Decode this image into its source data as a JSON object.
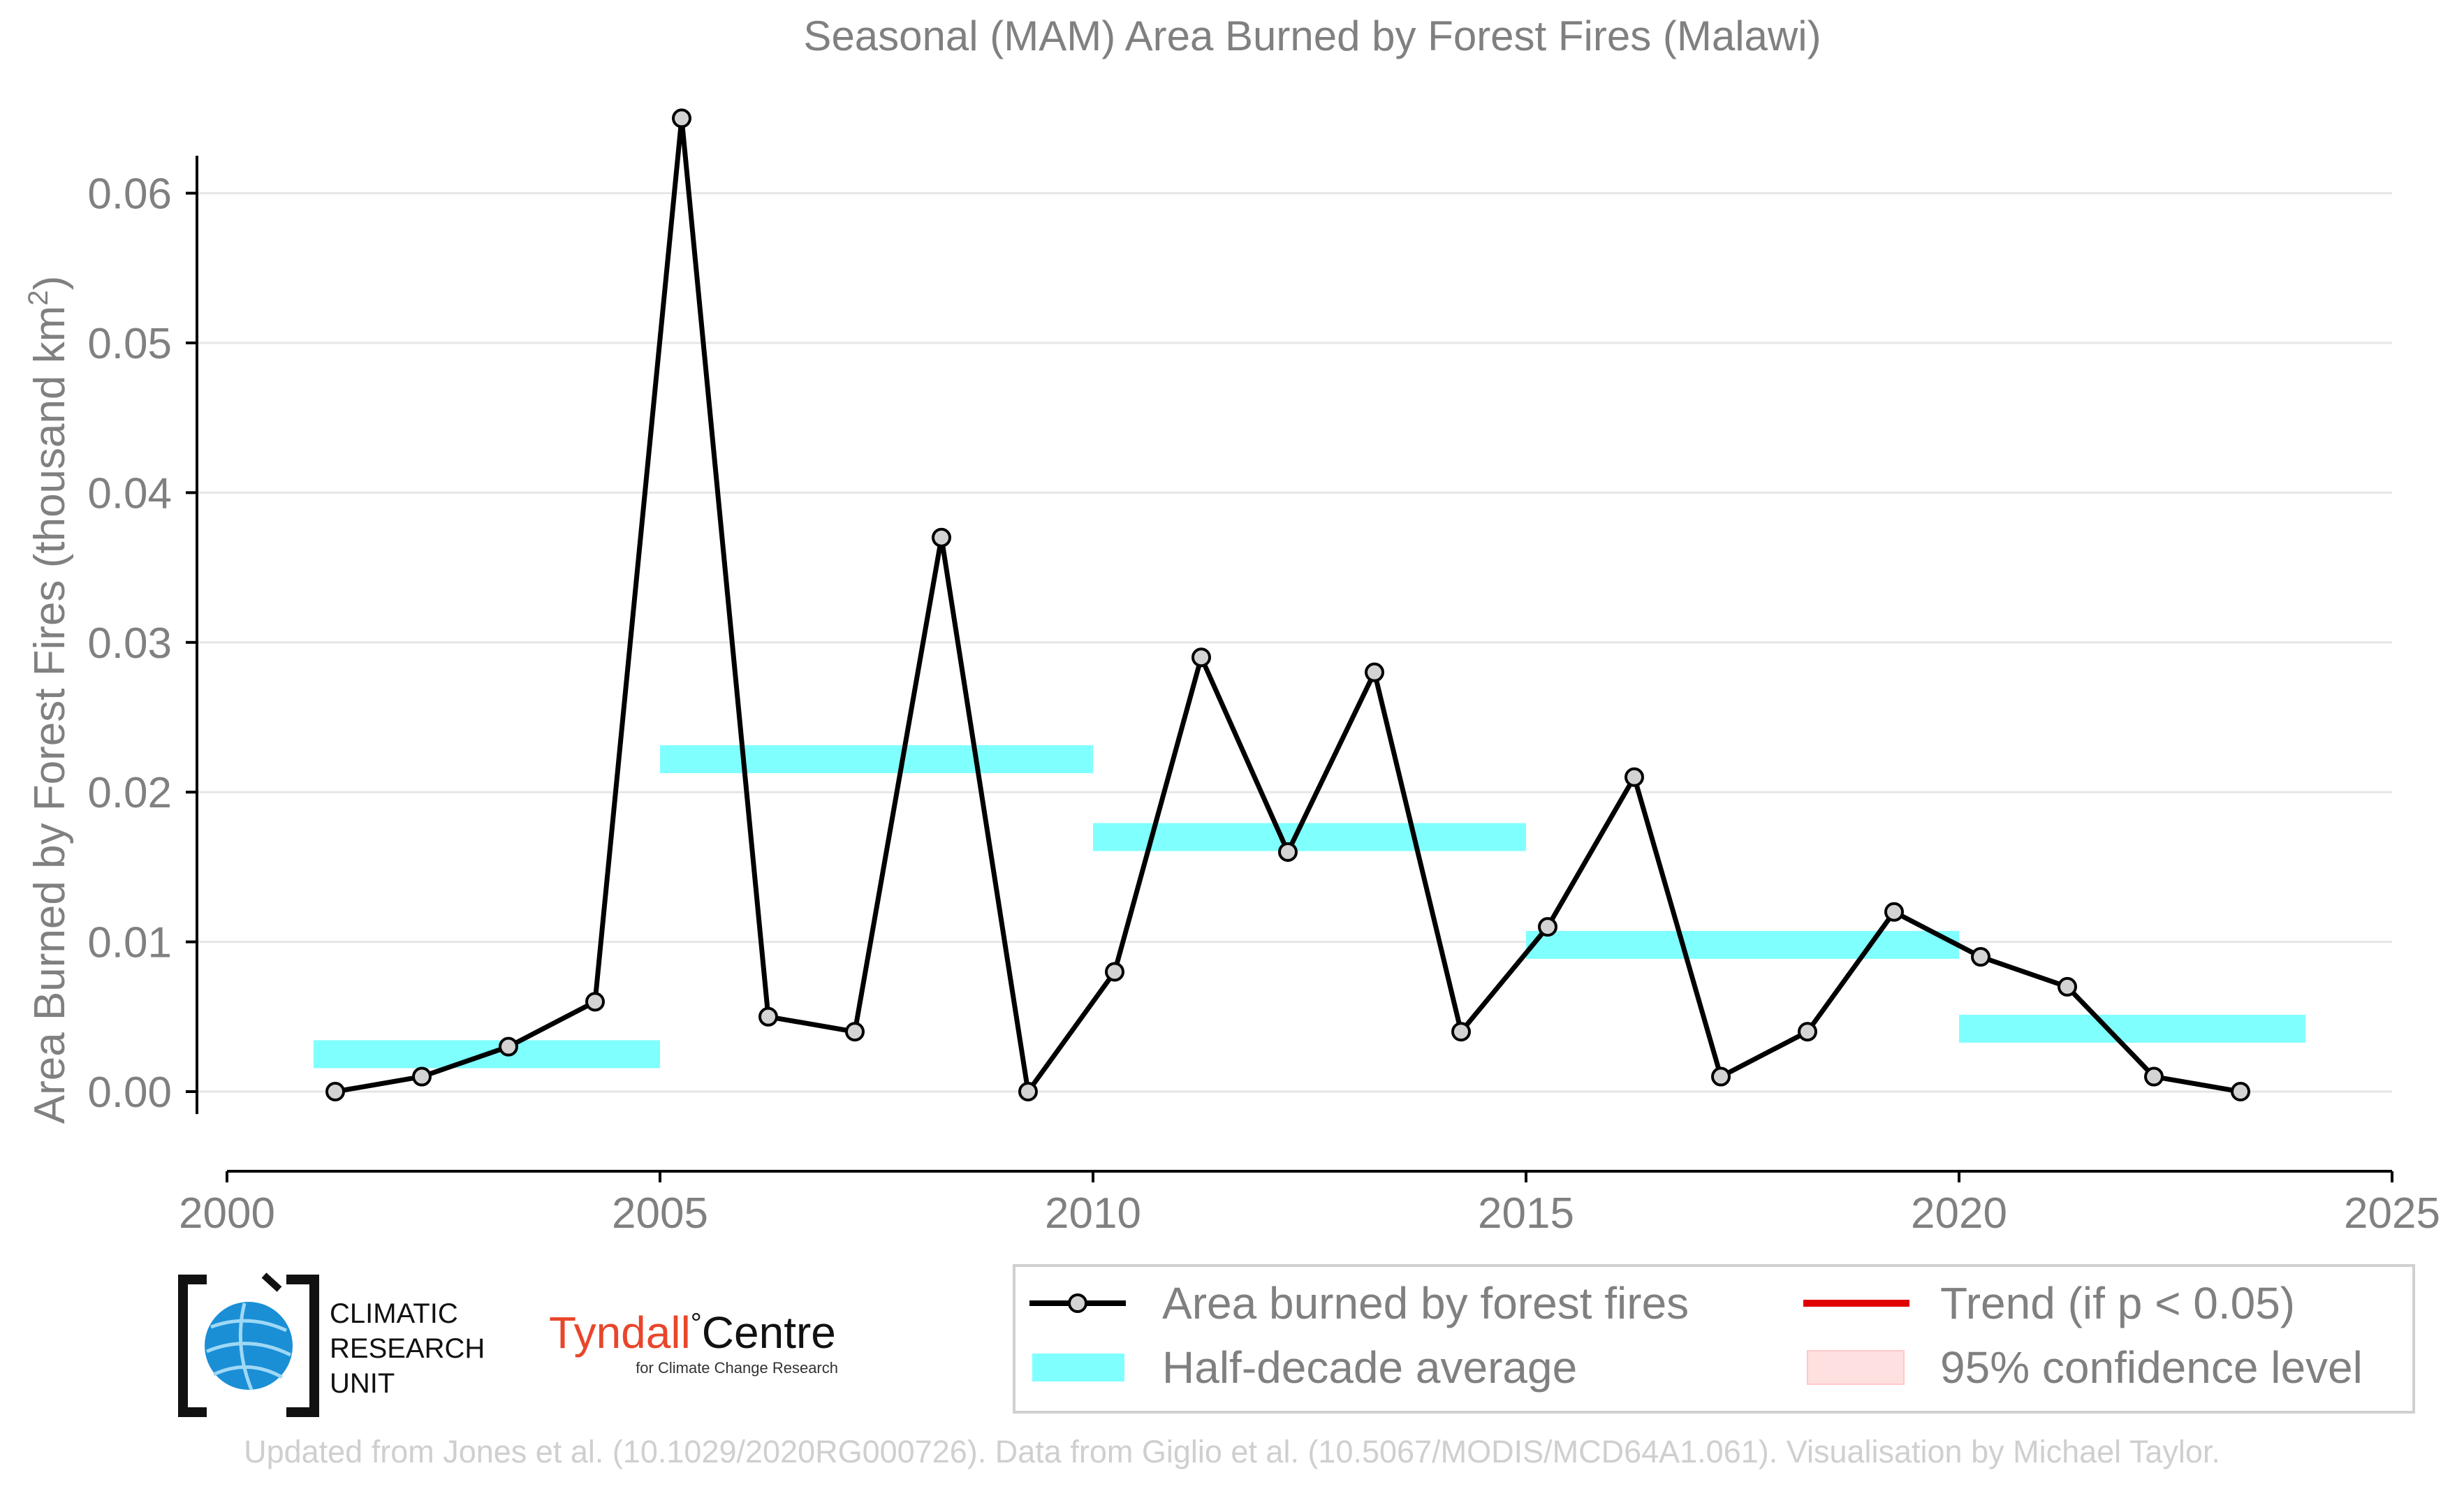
{
  "chart_data": {
    "type": "line",
    "title": "Seasonal (MAM) Area Burned by Forest Fires (Malawi)",
    "xlabel": "",
    "ylabel": "Area Burned by Forest Fires (thousand km",
    "ylabel_superscript": "2",
    "ylabel_close": ")",
    "xlim": [
      2000,
      2025
    ],
    "ylim": [
      -0.005,
      0.067
    ],
    "xticks": [
      2000,
      2005,
      2010,
      2015,
      2020,
      2025
    ],
    "xtick_labels": [
      "2000",
      "2005",
      "2010",
      "2015",
      "2020",
      "2025"
    ],
    "yticks": [
      0.0,
      0.01,
      0.02,
      0.03,
      0.04,
      0.05,
      0.06
    ],
    "ytick_labels": [
      "0.00",
      "0.01",
      "0.02",
      "0.03",
      "0.04",
      "0.05",
      "0.06"
    ],
    "grid": "horizontal",
    "series": [
      {
        "name": "Area burned by forest fires",
        "color": "#000000",
        "marker_fill": "#d3d3d3",
        "x": [
          2001.25,
          2002.25,
          2003.25,
          2004.25,
          2005.25,
          2006.25,
          2007.25,
          2008.25,
          2009.25,
          2010.25,
          2011.25,
          2012.25,
          2013.25,
          2014.25,
          2015.25,
          2016.25,
          2017.25,
          2018.25,
          2019.25,
          2020.25,
          2021.25,
          2022.25,
          2023.25
        ],
        "values": [
          0.0,
          0.001,
          0.003,
          0.006,
          0.065,
          0.005,
          0.004,
          0.037,
          0.0,
          0.008,
          0.029,
          0.016,
          0.028,
          0.004,
          0.011,
          0.021,
          0.001,
          0.004,
          0.012,
          0.009,
          0.007,
          0.001,
          0.0
        ]
      }
    ],
    "half_decade_average": {
      "name": "Half-decade average",
      "color": "#80ffff",
      "segments": [
        {
          "x0": 2001,
          "x1": 2005,
          "value": 0.0025
        },
        {
          "x0": 2005,
          "x1": 2010,
          "value": 0.0222
        },
        {
          "x0": 2010,
          "x1": 2015,
          "value": 0.017
        },
        {
          "x0": 2015,
          "x1": 2020,
          "value": 0.0098
        },
        {
          "x0": 2020,
          "x1": 2024,
          "value": 0.0042
        }
      ]
    },
    "legend": {
      "placement": "bottom-right",
      "items": [
        {
          "label": "Area burned by forest fires",
          "kind": "line-marker",
          "color": "#000000"
        },
        {
          "label": "Trend (if p < 0.05)",
          "kind": "line",
          "color": "#e00000"
        },
        {
          "label": "Half-decade average",
          "kind": "band",
          "color": "#80ffff"
        },
        {
          "label": "95% confidence level",
          "kind": "patch",
          "color": "#ffe0e0"
        }
      ]
    }
  },
  "logos": {
    "cru_lines": [
      "CLIMATIC",
      "RESEARCH",
      "UNIT"
    ],
    "tyndall_main": "Tyndall",
    "tyndall_degree": "°",
    "tyndall_centre": "Centre",
    "tyndall_sub": "for Climate Change Research"
  },
  "footer": "Updated from Jones et al. (10.1029/2020RG000726). Data from Giglio et al. (10.5067/MODIS/MCD64A1.061). Visualisation by Michael Taylor."
}
